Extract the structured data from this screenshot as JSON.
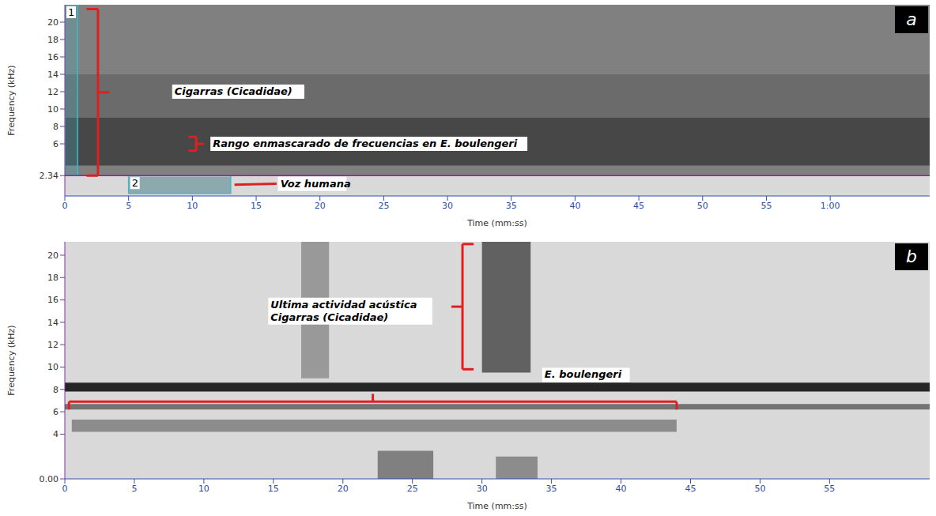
{
  "chart_data": [
    {
      "type": "spectrogram",
      "title": "a",
      "x_label": "Time (mm:ss)",
      "y_label": "Frequency (kHz)",
      "xlim": [
        0,
        67.8
      ],
      "xticks": [
        0,
        5,
        10,
        15,
        20,
        25,
        30,
        35,
        40,
        45,
        50,
        55,
        {
          "value": 60,
          "label": "1:00"
        }
      ],
      "ylim": [
        0,
        22
      ],
      "yticks": [
        2.34,
        6,
        8,
        10,
        12,
        14,
        16,
        18,
        20
      ],
      "bands": [
        {
          "x": [
            0,
            67.8
          ],
          "y": [
            0,
            22
          ],
          "level": 0.15
        },
        {
          "x": [
            0,
            67.8
          ],
          "y": [
            2.34,
            22
          ],
          "level": 0.5
        },
        {
          "x": [
            0,
            67.8
          ],
          "y": [
            9,
            14
          ],
          "level": 0.58
        },
        {
          "x": [
            0,
            67.8
          ],
          "y": [
            3.5,
            9
          ],
          "level": 0.72
        },
        {
          "x": [
            5,
            13
          ],
          "y": [
            0.3,
            2.2
          ],
          "level": 0.35
        }
      ],
      "markers": [
        {
          "y": 2.34,
          "color": "#c000c0"
        }
      ],
      "boxes": [
        {
          "label": "1",
          "x": [
            0,
            1
          ],
          "y": [
            2.34,
            22
          ],
          "color": "#3fb8c8"
        },
        {
          "label": "2",
          "x": [
            5,
            13
          ],
          "y": [
            0.3,
            2.34
          ],
          "color": "#3fb8c8"
        }
      ],
      "brackets": [
        {
          "y": [
            2.34,
            21.5
          ],
          "x": 2.6,
          "tip": 3.5,
          "color": "#e02020"
        },
        {
          "y": [
            5.2,
            6.8
          ],
          "x": 10.3,
          "tip": 10.9,
          "color": "#e02020"
        }
      ],
      "arrows": [
        {
          "from": [
            16.6,
            1.4
          ],
          "to": [
            13.3,
            1.3
          ],
          "color": "#e02020"
        }
      ],
      "annotations": [
        {
          "text": "Cigarras (Cicadidae)",
          "x": 8.6,
          "y": 12
        },
        {
          "text": "Rango enmascarado de frecuencias en E. boulengeri",
          "x": 11.6,
          "y": 6
        },
        {
          "text": "Voz humana",
          "x": 16.9,
          "y": 1.4
        }
      ]
    },
    {
      "type": "spectrogram",
      "title": "b",
      "x_label": "Time (mm:ss)",
      "y_label": "Frequency (kHz)",
      "xlim": [
        0,
        62.2
      ],
      "xticks": [
        0,
        5,
        10,
        15,
        20,
        25,
        30,
        35,
        40,
        45,
        50,
        55
      ],
      "ylim": [
        0,
        21.2
      ],
      "yticks": [
        {
          "value": 0,
          "label": "0.00"
        },
        4,
        6,
        8,
        10,
        12,
        14,
        16,
        18,
        20
      ],
      "bands": [
        {
          "x": [
            0,
            62.2
          ],
          "y": [
            0,
            21.2
          ],
          "level": 0.15
        },
        {
          "x": [
            0,
            62.2
          ],
          "y": [
            7.8,
            8.6
          ],
          "level": 0.85
        },
        {
          "x": [
            0,
            62.2
          ],
          "y": [
            6.2,
            6.7
          ],
          "level": 0.55
        },
        {
          "x": [
            0.5,
            44
          ],
          "y": [
            4.2,
            5.3
          ],
          "level": 0.45
        },
        {
          "x": [
            17,
            19
          ],
          "y": [
            9,
            21.2
          ],
          "level": 0.4
        },
        {
          "x": [
            30,
            33.5
          ],
          "y": [
            9.5,
            21.2
          ],
          "level": 0.62
        },
        {
          "x": [
            22.5,
            26.5
          ],
          "y": [
            0,
            2.5
          ],
          "level": 0.5
        },
        {
          "x": [
            31,
            34
          ],
          "y": [
            0,
            2
          ],
          "level": 0.45
        }
      ],
      "markers": [],
      "boxes": [],
      "brackets": [
        {
          "y": [
            9.8,
            21
          ],
          "x": 28.6,
          "tip": 27.8,
          "color": "#e02020"
        },
        {
          "x": [
            0.3,
            44
          ],
          "y": 6.9,
          "tip": 7.6,
          "color": "#e02020"
        }
      ],
      "arrows": [],
      "annotations": [
        {
          "text": [
            "Ultima actividad acústica",
            "Cigarras (Cicadidae)"
          ],
          "x": 14.8,
          "y": 15
        },
        {
          "text": "E. boulengeri",
          "x": 34.5,
          "y": 9.3
        }
      ]
    }
  ]
}
